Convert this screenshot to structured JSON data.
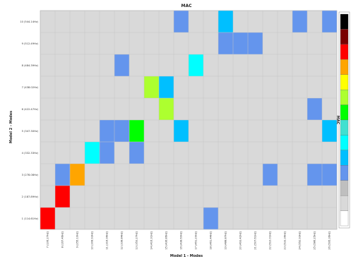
{
  "chart_data": {
    "type": "heatmap",
    "title": "MAC",
    "xlabel": "Model 1 - Modes",
    "ylabel": "Model 2 - Modes",
    "colorbar_label": "MAC",
    "x_categories": [
      "7 (106.27Hz)",
      "8 (167.46Hz)",
      "9 (255.10Hz)",
      "10 (308.93Hz)",
      "11 (316.96Hz)",
      "12 (338.84Hz)",
      "13 (353.27Hz)",
      "14 (416.31Hz)",
      "15 (436.86Hz)",
      "16 (438.60Hz)",
      "17 (451.20Hz)",
      "18 (461.44Hz)",
      "19 (488.87Hz)",
      "20 (493.42Hz)",
      "21 (507.61Hz)",
      "22 (510.01Hz)",
      "23 (533.36Hz)",
      "24 (552.93Hz)",
      "25 (586.25Hz)",
      "26 (595.36Hz)"
    ],
    "y_categories": [
      "1 (114.61Hz)",
      "2 (187.89Hz)",
      "3 (278.08Hz)",
      "4 (332.33Hz)",
      "5 (347.30Hz)",
      "6 (422.47Hz)",
      "7 (438.02Hz)",
      "8 (484.39Hz)",
      "9 (512.49Hz)",
      "10 (544.14Hz)"
    ],
    "colorbar_colors": [
      "#000000",
      "#7a0000",
      "#ff0000",
      "#ffa500",
      "#ffff00",
      "#adff2f",
      "#00ff00",
      "#40e0d0",
      "#00ffff",
      "#00bfff",
      "#6495ed",
      "#bfbfbf",
      "#d9d9d9",
      "#ffffff"
    ],
    "cells": [
      {
        "x": 0,
        "y": 0,
        "value": 0.9,
        "color": "#ff0000"
      },
      {
        "x": 11,
        "y": 0,
        "value": 0.2,
        "color": "#6495ed"
      },
      {
        "x": 1,
        "y": 1,
        "value": 0.9,
        "color": "#ff0000"
      },
      {
        "x": 1,
        "y": 2,
        "value": 0.2,
        "color": "#6495ed"
      },
      {
        "x": 2,
        "y": 2,
        "value": 0.7,
        "color": "#ffa500"
      },
      {
        "x": 15,
        "y": 2,
        "value": 0.2,
        "color": "#6495ed"
      },
      {
        "x": 18,
        "y": 2,
        "value": 0.2,
        "color": "#6495ed"
      },
      {
        "x": 19,
        "y": 2,
        "value": 0.2,
        "color": "#6495ed"
      },
      {
        "x": 3,
        "y": 3,
        "value": 0.35,
        "color": "#00ffff"
      },
      {
        "x": 4,
        "y": 3,
        "value": 0.2,
        "color": "#6495ed"
      },
      {
        "x": 6,
        "y": 3,
        "value": 0.2,
        "color": "#6495ed"
      },
      {
        "x": 4,
        "y": 4,
        "value": 0.2,
        "color": "#6495ed"
      },
      {
        "x": 5,
        "y": 4,
        "value": 0.2,
        "color": "#6495ed"
      },
      {
        "x": 6,
        "y": 4,
        "value": 0.5,
        "color": "#00ff00"
      },
      {
        "x": 9,
        "y": 4,
        "value": 0.3,
        "color": "#00bfff"
      },
      {
        "x": 19,
        "y": 4,
        "value": 0.3,
        "color": "#00bfff"
      },
      {
        "x": 8,
        "y": 5,
        "value": 0.55,
        "color": "#adff2f"
      },
      {
        "x": 18,
        "y": 5,
        "value": 0.2,
        "color": "#6495ed"
      },
      {
        "x": 7,
        "y": 6,
        "value": 0.55,
        "color": "#adff2f"
      },
      {
        "x": 8,
        "y": 6,
        "value": 0.3,
        "color": "#00bfff"
      },
      {
        "x": 5,
        "y": 7,
        "value": 0.2,
        "color": "#6495ed"
      },
      {
        "x": 10,
        "y": 7,
        "value": 0.35,
        "color": "#00ffff"
      },
      {
        "x": 12,
        "y": 8,
        "value": 0.2,
        "color": "#6495ed"
      },
      {
        "x": 13,
        "y": 8,
        "value": 0.2,
        "color": "#6495ed"
      },
      {
        "x": 14,
        "y": 8,
        "value": 0.2,
        "color": "#6495ed"
      },
      {
        "x": 9,
        "y": 9,
        "value": 0.2,
        "color": "#6495ed"
      },
      {
        "x": 12,
        "y": 9,
        "value": 0.3,
        "color": "#00bfff"
      },
      {
        "x": 17,
        "y": 9,
        "value": 0.2,
        "color": "#6495ed"
      },
      {
        "x": 19,
        "y": 9,
        "value": 0.2,
        "color": "#6495ed"
      }
    ],
    "background_color": "#d9d9d9",
    "grid": true,
    "legend_position": "right"
  }
}
